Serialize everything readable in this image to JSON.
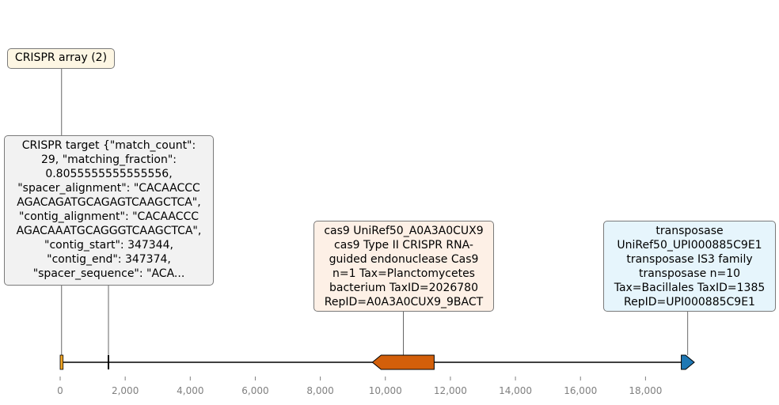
{
  "axis": {
    "min": 0,
    "max": 19500,
    "ticks": [
      {
        "value": 0,
        "label": "0"
      },
      {
        "value": 2000,
        "label": "2,000"
      },
      {
        "value": 4000,
        "label": "4,000"
      },
      {
        "value": 6000,
        "label": "6,000"
      },
      {
        "value": 8000,
        "label": "8,000"
      },
      {
        "value": 10000,
        "label": "10,000"
      },
      {
        "value": 12000,
        "label": "12,000"
      },
      {
        "value": 14000,
        "label": "14,000"
      },
      {
        "value": 16000,
        "label": "16,000"
      },
      {
        "value": 18000,
        "label": "18,000"
      }
    ]
  },
  "features": [
    {
      "id": "crispr-array",
      "start": 0,
      "end": 90,
      "strand": 0,
      "color": "#f5a623",
      "label": "CRISPR array (2)",
      "label_bg": "#fdf6e3"
    },
    {
      "id": "crispr-target",
      "start": 1470,
      "end": 1500,
      "strand": 0,
      "color": "#000000",
      "label": "CRISPR target {\"match_count\": 29, \"matching_fraction\": 0.8055555555555556, \"spacer_alignment\": \"CACAACCC AGACAGATGCAGAGTCAAGCTCA\", \"contig_alignment\": \"CACAACCC AGACAAATGCAGGGTCAAGCTCA\", \"contig_start\": 347344, \"contig_end\": 347374, \"spacer_sequence\": \"ACA...",
      "label_bg": "#f2f2f2"
    },
    {
      "id": "cas9",
      "start": 9600,
      "end": 11500,
      "strand": -1,
      "color": "#d35f0a",
      "label": "cas9 UniRef50_A0A3A0CUX9 cas9 Type II CRISPR RNA-guided endonuclease Cas9 n=1 Tax=Planctomycetes bacterium TaxID=2026780 RepID=A0A3A0CUX9_9BACT",
      "label_bg": "#fdf0e6"
    },
    {
      "id": "transposase",
      "start": 19100,
      "end": 19500,
      "strand": 1,
      "color": "#1f78b4",
      "label": "transposase UniRef50_UPI000885C9E1 transposase IS3 family transposase n=10 Tax=Bacillales TaxID=1385 RepID=UPI000885C9E1",
      "label_bg": "#e6f5fc"
    }
  ],
  "labels_display": {
    "crispr-array": "CRISPR array (2)",
    "crispr-target": "CRISPR target {\"match_count\":\n29, \"matching_fraction\":\n0.8055555555555556,\n\"spacer_alignment\": \"CACAACCC\nAGACAGATGCAGAGTCAAGCTCA\",\n\"contig_alignment\": \"CACAACCC\nAGACAAATGCAGGGTCAAGCTCA\",\n\"contig_start\": 347344,\n\"contig_end\": 347374,\n\"spacer_sequence\": \"ACA...",
    "cas9": "cas9 UniRef50_A0A3A0CUX9\ncas9 Type II CRISPR RNA-\nguided endonuclease Cas9\nn=1 Tax=Planctomycetes\nbacterium TaxID=2026780\nRepID=A0A3A0CUX9_9BACT",
    "transposase": "transposase\nUniRef50_UPI000885C9E1\ntransposase IS3 family\ntransposase n=10\nTax=Bacillales TaxID=1385\nRepID=UPI000885C9E1"
  }
}
